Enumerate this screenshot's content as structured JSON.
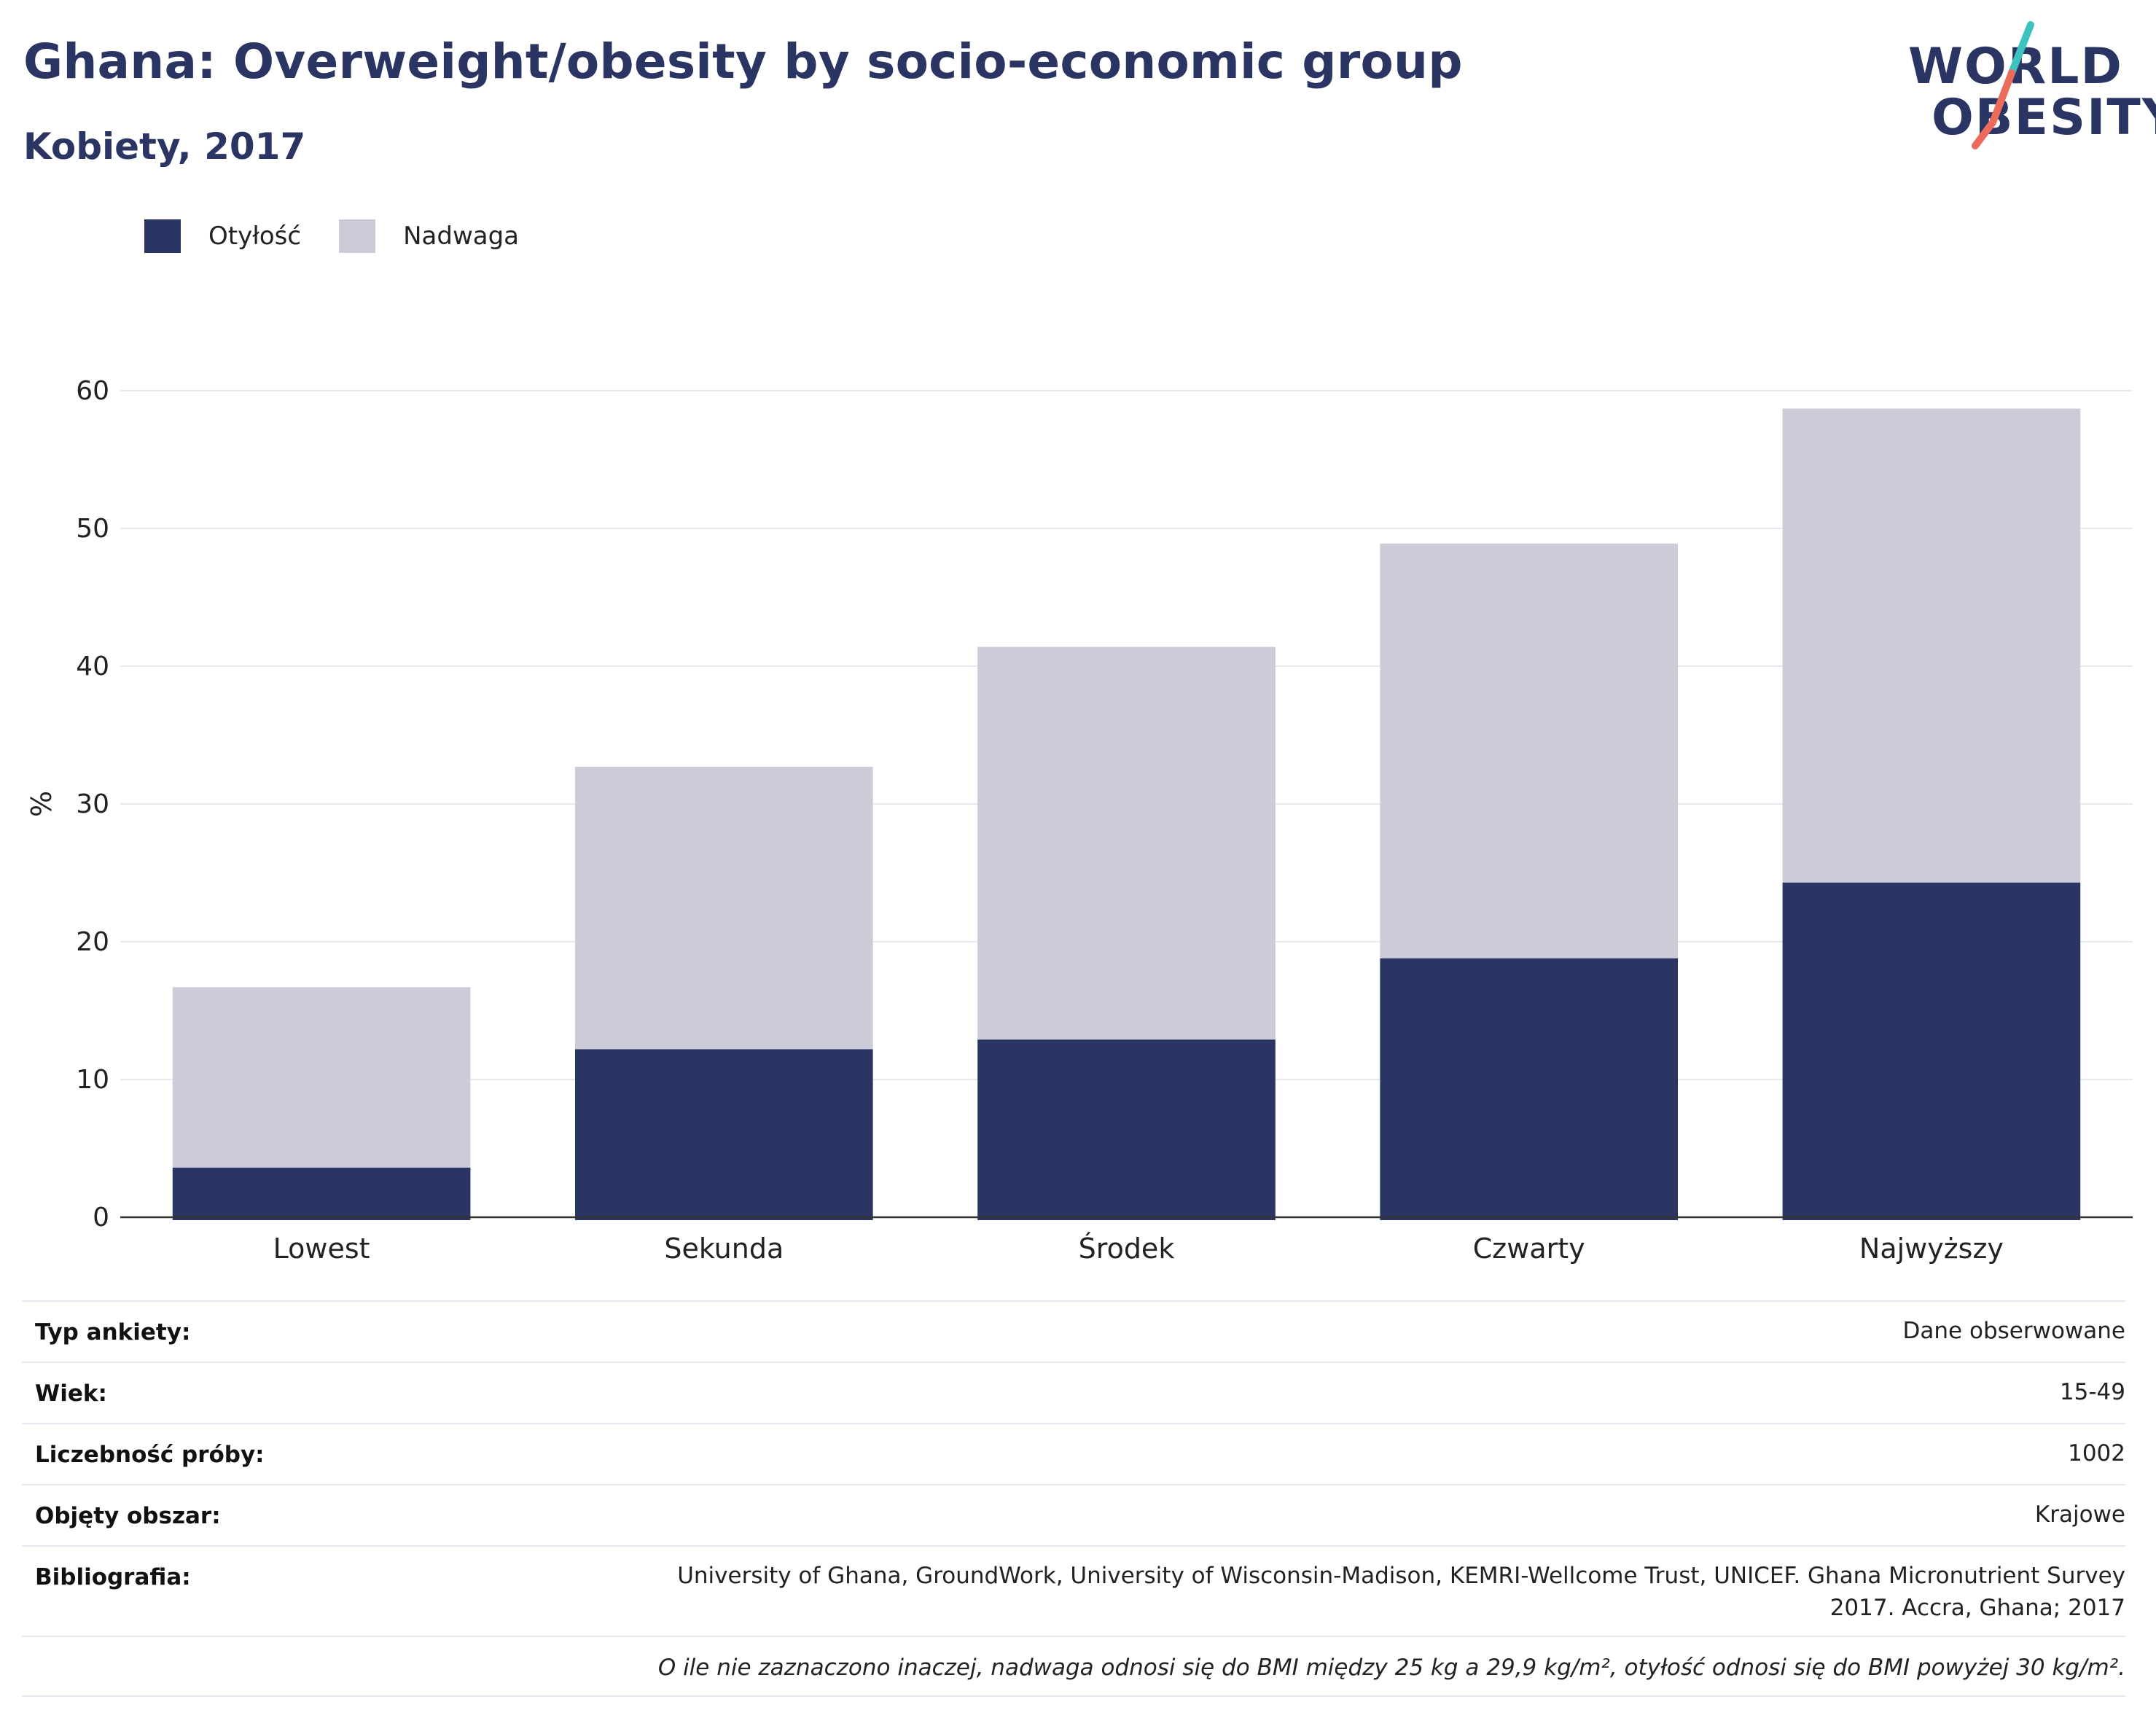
{
  "header": {
    "title": "Ghana: Overweight/obesity by socio-economic group",
    "subtitle": "Kobiety, 2017"
  },
  "logo": {
    "line1": "WORLD",
    "line2": "OBESITY",
    "slash_colors": [
      "#3cc3c0",
      "#ec6b5a"
    ]
  },
  "legend": [
    {
      "label": "Otyłość",
      "color": "#2a3563"
    },
    {
      "label": "Nadwaga",
      "color": "#cbccd8"
    }
  ],
  "chart_data": {
    "type": "bar",
    "stacked": true,
    "categories": [
      "Lowest",
      "Sekunda",
      "Środek",
      "Czwarty",
      "Najwyższy"
    ],
    "series": [
      {
        "name": "Otyłość",
        "color": "#2a3563",
        "values": [
          3.6,
          12.2,
          12.9,
          18.8,
          24.3
        ]
      },
      {
        "name": "Nadwaga",
        "color": "#cbccd8",
        "values": [
          13.1,
          20.5,
          28.5,
          30.1,
          34.4
        ]
      }
    ],
    "ylabel": "%",
    "ylim": [
      0,
      60
    ],
    "yticks": [
      0,
      10,
      20,
      30,
      40,
      50,
      60
    ],
    "grid": true,
    "legend_position": "top-left"
  },
  "info": {
    "rows": [
      {
        "label": "Typ ankiety:",
        "value": "Dane obserwowane"
      },
      {
        "label": "Wiek:",
        "value": "15-49"
      },
      {
        "label": "Liczebność próby:",
        "value": "1002"
      },
      {
        "label": "Objęty obszar:",
        "value": "Krajowe"
      },
      {
        "label": "Bibliografia:",
        "value_line1": "University of Ghana, GroundWork, University of Wisconsin-Madison, KEMRI-Wellcome Trust, UNICEF. Ghana Micronutrient Survey",
        "value_line2": "2017. Accra, Ghana; 2017"
      }
    ],
    "footnote": "O ile nie zaznaczono inaczej, nadwaga odnosi się do BMI między 25 kg a 29,9 kg/m², otyłość odnosi się do BMI powyżej 30 kg/m²."
  }
}
